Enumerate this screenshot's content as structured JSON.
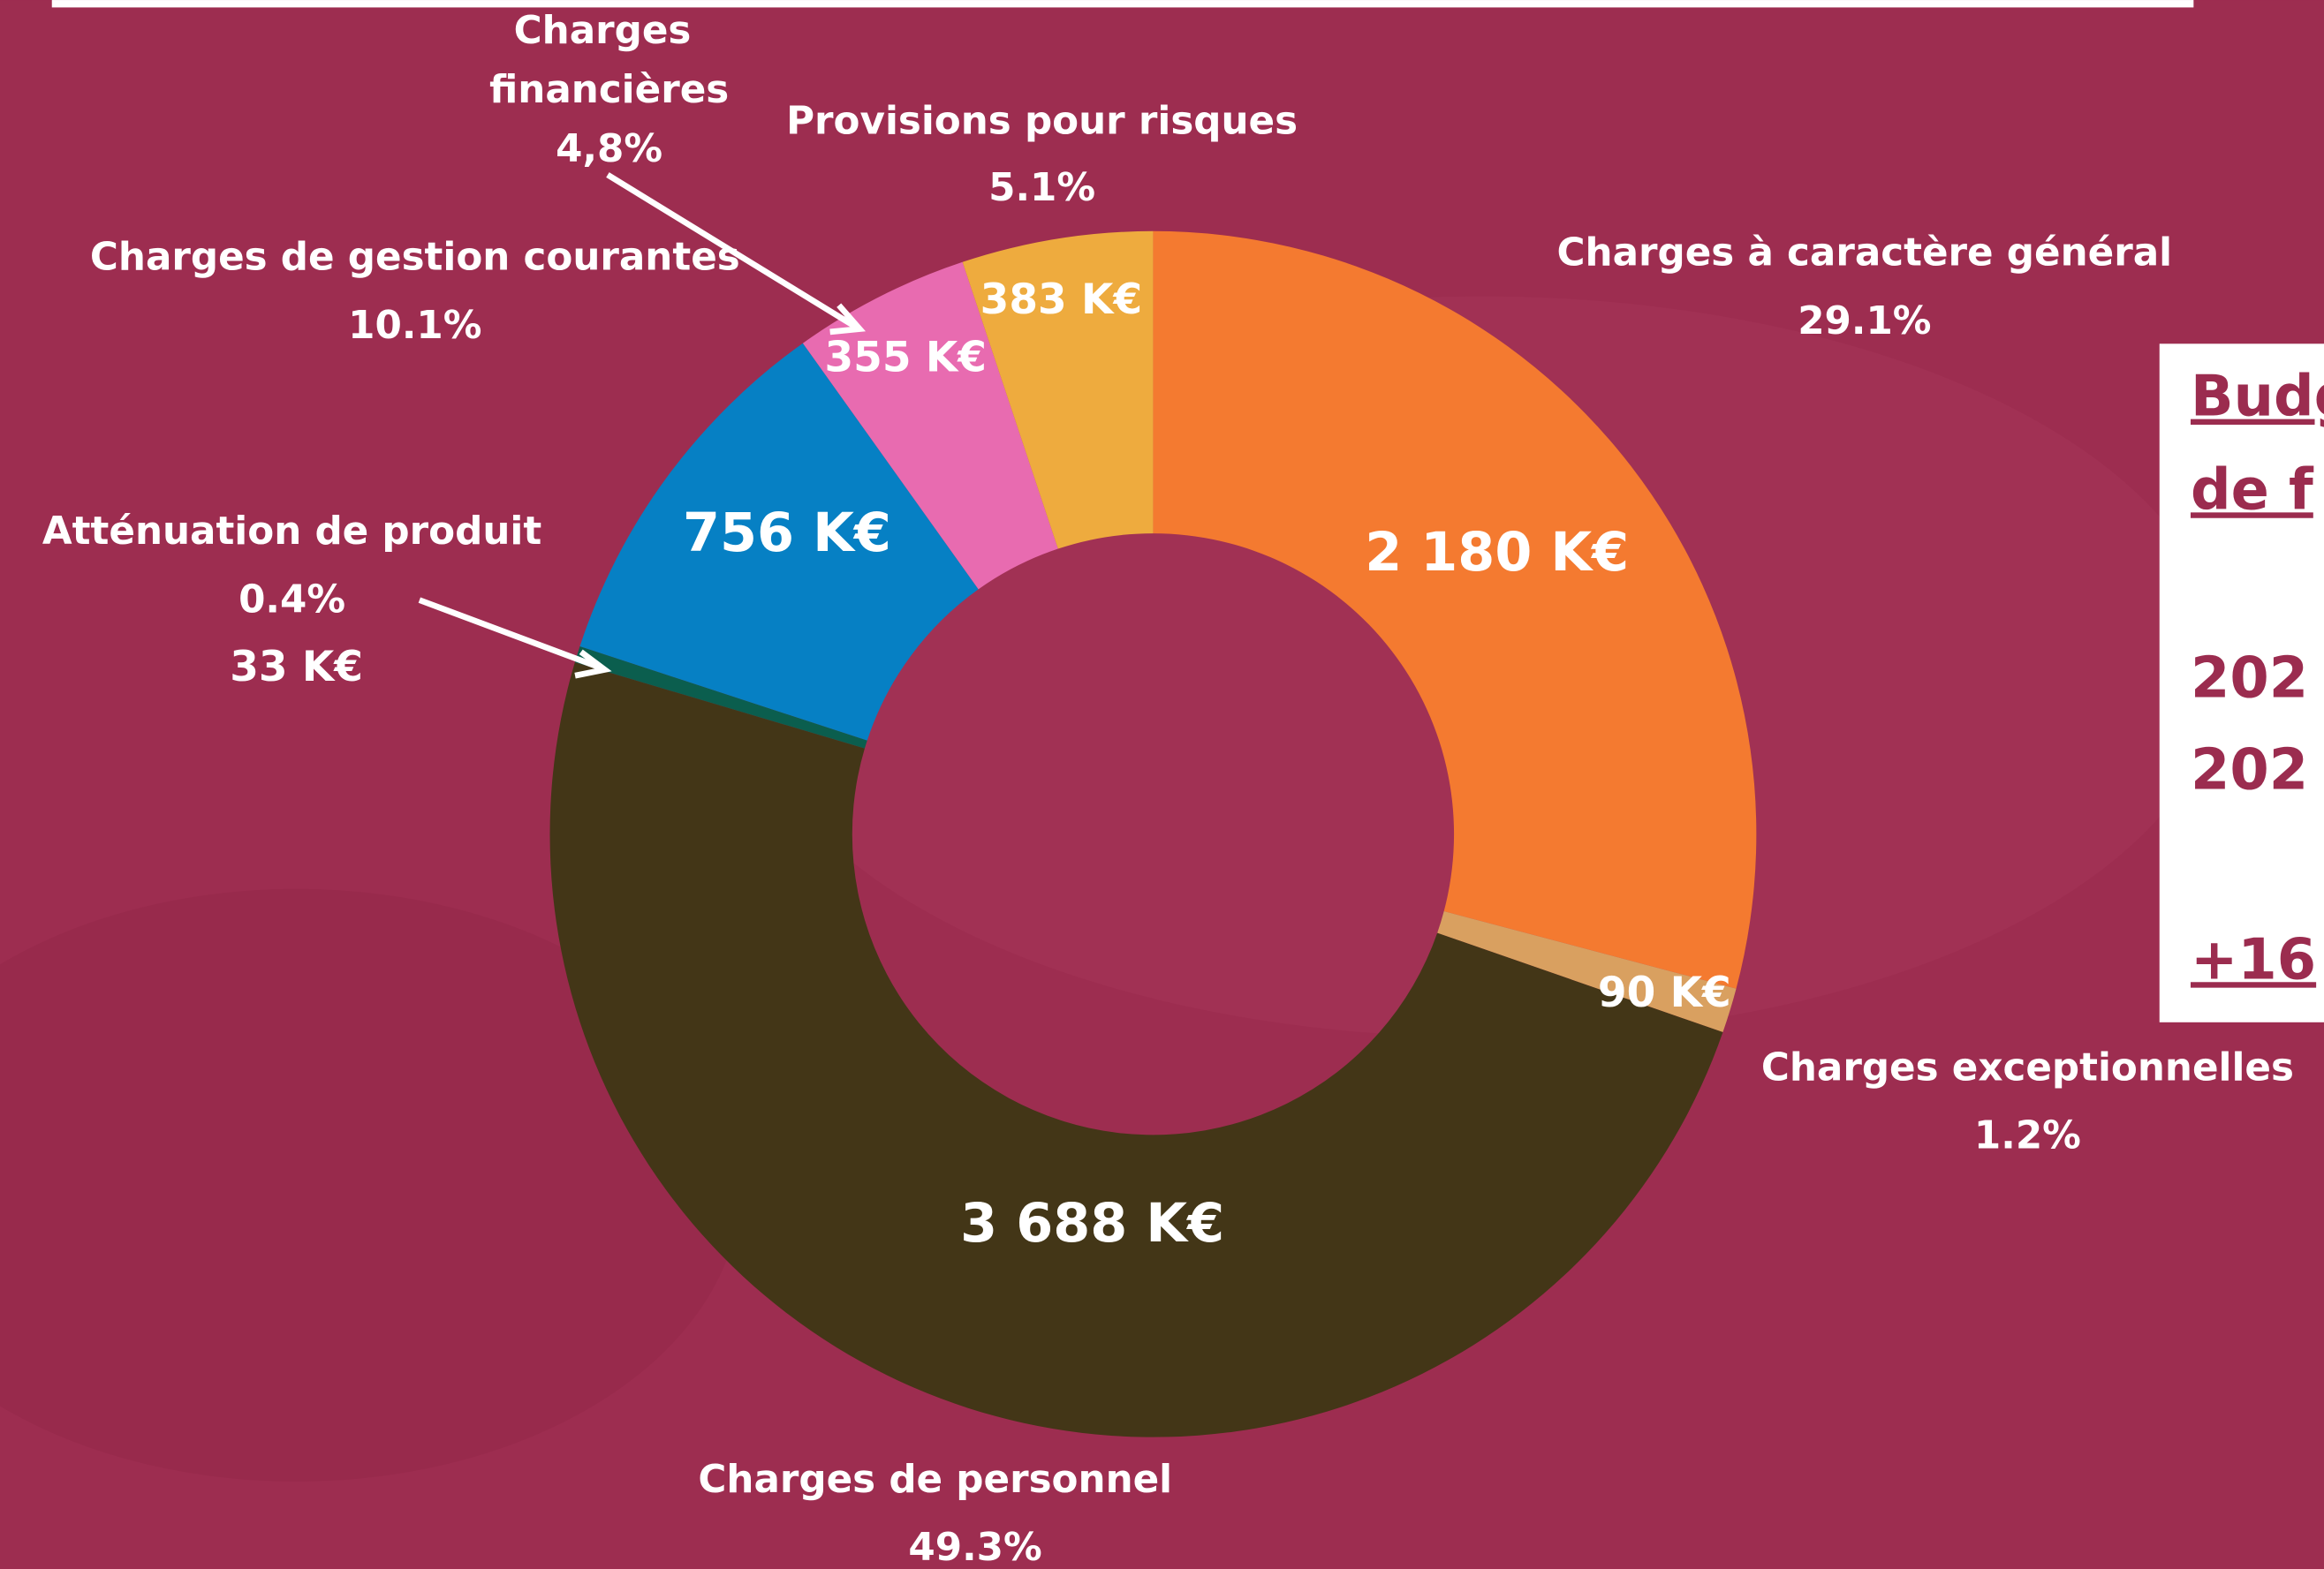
{
  "chart_data": {
    "type": "donut",
    "categories": [
      "Charges à caractère général",
      "Charges exceptionnelles",
      "Charges de personnel",
      "Atténuation de produit",
      "Charges de gestion courantes",
      "Charges financières",
      "Provisions pour risques"
    ],
    "values": [
      2180,
      90,
      3688,
      33,
      756,
      355,
      383
    ],
    "value_labels": [
      "2 180 K€",
      "90 K€",
      "3 688 K€",
      "33 K€",
      "756 K€",
      "355 K€",
      "383 K€"
    ],
    "percentages": [
      29.1,
      1.2,
      49.3,
      0.4,
      10.1,
      4.8,
      5.1
    ],
    "percentage_labels": [
      "29.1%",
      "1.2%",
      "49.3%",
      "0.4%",
      "10.1%",
      "4,8%",
      "5.1%"
    ],
    "colors": [
      "#f47a30",
      "#d9a060",
      "#433617",
      "#0b5e4e",
      "#0680c4",
      "#e86bb0",
      "#eeab3e"
    ]
  },
  "side_box": {
    "lines": [
      "Budg",
      "de f",
      "202",
      "202",
      "+16"
    ]
  }
}
